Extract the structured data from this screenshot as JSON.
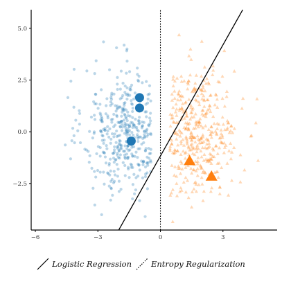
{
  "chart_data": {
    "type": "scatter",
    "xlim": [
      -6.2,
      5.6
    ],
    "ylim": [
      -4.75,
      5.9
    ],
    "x_ticks": [
      -6,
      -3,
      0,
      3
    ],
    "x_tick_labels": [
      "−6",
      "−3",
      "0",
      "3"
    ],
    "y_ticks": [
      5,
      2.5,
      0,
      -2.5
    ],
    "y_tick_labels": [
      "5.0",
      "2.5",
      "0.0",
      "−2.5"
    ],
    "grid": false,
    "legend_position": "bottom",
    "clusters": [
      {
        "color": "#1f77b4",
        "marker": "circle",
        "opacity": 0.3,
        "x_center": -1.6,
        "x_spread": 1.05,
        "x_min": -5.8,
        "x_max": -0.45,
        "y_center": 0.0,
        "y_spread": 1.55,
        "n": 420
      },
      {
        "color": "#ff7f0e",
        "marker": "triangle",
        "opacity": 0.3,
        "x_center": 1.6,
        "x_spread": 1.05,
        "x_min": 0.45,
        "x_max": 5.0,
        "y_center": 0.0,
        "y_spread": 1.55,
        "n": 420
      }
    ],
    "highlighted": [
      {
        "x": -1.0,
        "y": 1.65,
        "color": "#1f77b4",
        "marker": "circle"
      },
      {
        "x": -1.0,
        "y": 1.15,
        "color": "#1f77b4",
        "marker": "circle"
      },
      {
        "x": -1.4,
        "y": -0.45,
        "color": "#1f77b4",
        "marker": "circle"
      },
      {
        "x": 1.4,
        "y": -1.4,
        "color": "#ff7f0e",
        "marker": "triangle"
      },
      {
        "x": 2.45,
        "y": -2.15,
        "color": "#ff7f0e",
        "marker": "triangle"
      }
    ],
    "lines": [
      {
        "name": "Logistic Regression",
        "style": "solid",
        "x": [
          -2.0,
          3.95
        ],
        "y": [
          -4.75,
          5.9
        ]
      },
      {
        "name": "Entropy Regularization",
        "style": "dotted",
        "x": [
          0.0,
          0.0
        ],
        "y": [
          -4.75,
          5.9
        ]
      }
    ],
    "legend": [
      {
        "name": "Logistic Regression",
        "style": "solid"
      },
      {
        "name": "Entropy Regularization",
        "style": "dotted"
      }
    ]
  }
}
